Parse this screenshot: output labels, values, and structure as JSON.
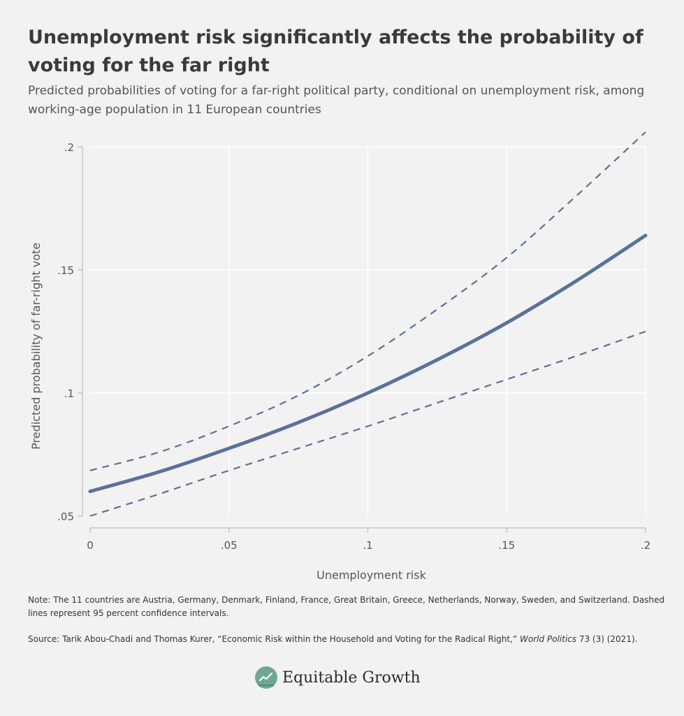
{
  "title": "Unemployment risk significantly affects the probability of voting for the far right",
  "subtitle": "Predicted probabilities of voting for a far-right political party, conditional on unemployment risk, among working-age population in 11 European countries",
  "note": "Note: The 11 countries are Austria, Germany, Denmark, Finland, France, Great Britain, Greece, Netherlands, Norway, Sweden, and Switzerland. Dashed lines represent 95 percent confidence intervals.",
  "source": {
    "prefix": "Source: Tarik Abou-Chadi and Thomas Kurer, “Economic Risk within the Household and Voting for the Radical Right,” ",
    "journal": "World Politics",
    "suffix": " 73 (3) (2021)."
  },
  "brand": {
    "name": "Equitable Growth",
    "icon": "equitable-growth-logo-icon"
  },
  "colors": {
    "line": "#5b7198",
    "grid": "#ffffff",
    "axis": "#b0b0b0",
    "background": "#f2f2f2"
  },
  "chart_data": {
    "type": "line",
    "xlabel": "Unemployment risk",
    "ylabel": "Predicted probability of far-right vote",
    "xlim": [
      0,
      0.2
    ],
    "ylim": [
      0.05,
      0.2
    ],
    "x_ticks": [
      0,
      0.05,
      0.1,
      0.15,
      0.2
    ],
    "x_tick_labels": [
      "0",
      ".05",
      ".1",
      ".15",
      ".2"
    ],
    "y_ticks": [
      0.05,
      0.1,
      0.15,
      0.2
    ],
    "y_tick_labels": [
      ".05",
      ".1",
      ".15",
      ".2"
    ],
    "series": [
      {
        "name": "Upper 95% confidence interval",
        "style": "dashed",
        "x": [
          0,
          0.025,
          0.05,
          0.075,
          0.1,
          0.125,
          0.15,
          0.175,
          0.2
        ],
        "y": [
          0.0685,
          0.076,
          0.0865,
          0.099,
          0.115,
          0.134,
          0.155,
          0.18,
          0.206
        ]
      },
      {
        "name": "Predicted probability",
        "style": "solid",
        "x": [
          0,
          0.025,
          0.05,
          0.075,
          0.1,
          0.125,
          0.15,
          0.175,
          0.2
        ],
        "y": [
          0.06,
          0.068,
          0.0775,
          0.088,
          0.1,
          0.1135,
          0.1285,
          0.1455,
          0.164
        ]
      },
      {
        "name": "Lower 95% confidence interval",
        "style": "dashed",
        "x": [
          0,
          0.025,
          0.05,
          0.075,
          0.1,
          0.125,
          0.15,
          0.175,
          0.2
        ],
        "y": [
          0.05,
          0.059,
          0.0685,
          0.0775,
          0.0865,
          0.096,
          0.1055,
          0.115,
          0.125
        ]
      }
    ]
  }
}
